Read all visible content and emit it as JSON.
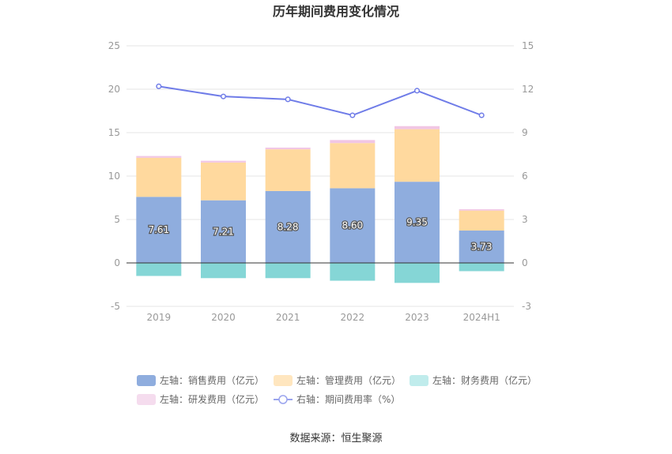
{
  "title": "历年期间费用变化情况",
  "source": "数据来源：恒生聚源",
  "colors": {
    "sales": "#8fadde",
    "admin": "#ffd99e",
    "finance": "#85d6d6",
    "rd": "#f1c6e4",
    "line": "#6f7ce8"
  },
  "chart_data": {
    "type": "bar",
    "stacked": true,
    "categories": [
      "2019",
      "2020",
      "2021",
      "2022",
      "2023",
      "2024H1"
    ],
    "left_axis": {
      "ticks": [
        "-5",
        "0",
        "5",
        "10",
        "15",
        "20",
        "25"
      ],
      "ylim": [
        -5,
        25
      ]
    },
    "right_axis": {
      "ticks": [
        "-3",
        "0",
        "3",
        "6",
        "9",
        "12",
        "15"
      ],
      "ylim": [
        -3,
        15
      ]
    },
    "series": [
      {
        "key": "sales",
        "name": "左轴：销售费用（亿元）",
        "axis": "left",
        "values": [
          7.61,
          7.21,
          8.28,
          8.6,
          9.35,
          3.73
        ],
        "labels": [
          "7.61",
          "7.21",
          "8.28",
          "8.60",
          "9.35",
          "3.73"
        ]
      },
      {
        "key": "admin",
        "name": "左轴：管理费用（亿元）",
        "axis": "left",
        "values": [
          4.5,
          4.35,
          4.8,
          5.2,
          6.05,
          2.3
        ]
      },
      {
        "key": "finance",
        "name": "左轴：财务费用（亿元）",
        "axis": "left",
        "values": [
          -1.5,
          -1.75,
          -1.75,
          -2.05,
          -2.3,
          -0.95
        ]
      },
      {
        "key": "rd",
        "name": "左轴：研发费用（亿元）",
        "axis": "left",
        "values": [
          0.2,
          0.2,
          0.2,
          0.35,
          0.35,
          0.15
        ]
      },
      {
        "key": "rate",
        "name": "右轴：期间费用率（%）",
        "axis": "right",
        "type": "line",
        "values": [
          12.2,
          11.5,
          11.3,
          10.2,
          11.9,
          10.2
        ]
      }
    ],
    "grid": true,
    "legend_position": "bottom"
  }
}
